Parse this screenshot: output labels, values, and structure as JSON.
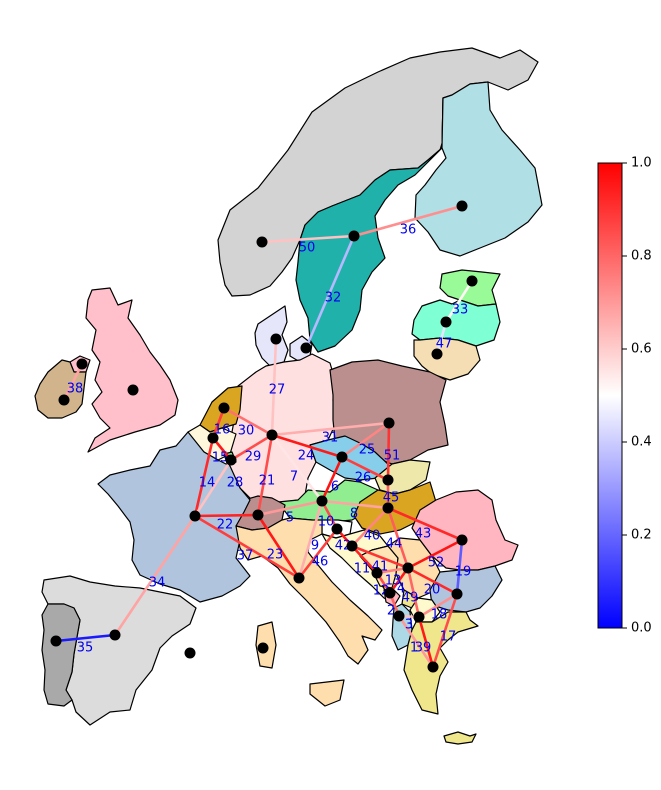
{
  "colorbar": {
    "ticks": [
      "0.0",
      "0.2",
      "0.4",
      "0.6",
      "0.8",
      "1.0"
    ],
    "colors": {
      "low": "#0000ff",
      "mid": "#ffffff",
      "high": "#ff0000"
    }
  },
  "nodes": [
    {
      "id": "n-norway"
    },
    {
      "id": "n-sweden"
    },
    {
      "id": "n-finland"
    },
    {
      "id": "n-latvia"
    },
    {
      "id": "n-lithuania"
    },
    {
      "id": "n-estonia"
    },
    {
      "id": "n-denmark"
    },
    {
      "id": "n-zealand"
    },
    {
      "id": "n-ireland-n"
    },
    {
      "id": "n-ireland"
    },
    {
      "id": "n-uk"
    },
    {
      "id": "n-netherlands"
    },
    {
      "id": "n-belgium"
    },
    {
      "id": "n-luxembourg"
    },
    {
      "id": "n-germany"
    },
    {
      "id": "n-poland"
    },
    {
      "id": "n-czech"
    },
    {
      "id": "n-slovakia"
    },
    {
      "id": "n-austria"
    },
    {
      "id": "n-hungary"
    },
    {
      "id": "n-france"
    },
    {
      "id": "n-switzerland"
    },
    {
      "id": "n-italy"
    },
    {
      "id": "n-slovenia"
    },
    {
      "id": "n-croatia"
    },
    {
      "id": "n-bosnia"
    },
    {
      "id": "n-serbia"
    },
    {
      "id": "n-romania"
    },
    {
      "id": "n-bulgaria"
    },
    {
      "id": "n-montenegro"
    },
    {
      "id": "n-albania"
    },
    {
      "id": "n-macedonia"
    },
    {
      "id": "n-greece"
    },
    {
      "id": "n-spain"
    },
    {
      "id": "n-portugal"
    },
    {
      "id": "n-corsica"
    },
    {
      "id": "n-sardinia"
    }
  ],
  "edges": [
    {
      "label": "50",
      "value": 0.62
    },
    {
      "label": "36",
      "value": 0.72
    },
    {
      "label": "32",
      "value": 0.36
    },
    {
      "label": "33",
      "value": 0.52
    },
    {
      "label": "47",
      "value": 0.45
    },
    {
      "label": "38",
      "value": 0.68
    },
    {
      "label": "27",
      "value": 0.62
    },
    {
      "label": "16",
      "value": 0.88
    },
    {
      "label": "30",
      "value": 0.78
    },
    {
      "label": "15",
      "value": 0.95
    },
    {
      "label": "29",
      "value": 0.85
    },
    {
      "label": "14",
      "value": 0.92
    },
    {
      "label": "31",
      "value": 0.66
    },
    {
      "label": "24",
      "value": 0.95
    },
    {
      "label": "25",
      "value": 0.74
    },
    {
      "label": "51",
      "value": 0.9
    },
    {
      "label": "26",
      "value": 0.88
    },
    {
      "label": "7",
      "value": 0.55
    },
    {
      "label": "28",
      "value": 0.62
    },
    {
      "label": "21",
      "value": 0.85
    },
    {
      "label": "6",
      "value": 0.96
    },
    {
      "label": "45",
      "value": 0.82
    },
    {
      "label": "22",
      "value": 0.93
    },
    {
      "label": "5",
      "value": 0.7
    },
    {
      "label": "10",
      "value": 0.85
    },
    {
      "label": "8",
      "value": 0.68
    },
    {
      "label": "37",
      "value": 0.88
    },
    {
      "label": "23",
      "value": 0.95
    },
    {
      "label": "9",
      "value": 0.66
    },
    {
      "label": "46",
      "value": 0.88
    },
    {
      "label": "42",
      "value": 0.95
    },
    {
      "label": "40",
      "value": 0.74
    },
    {
      "label": "43",
      "value": 0.92
    },
    {
      "label": "44",
      "value": 0.82
    },
    {
      "label": "11",
      "value": 0.93
    },
    {
      "label": "41",
      "value": 0.9
    },
    {
      "label": "52",
      "value": 0.96
    },
    {
      "label": "19",
      "value": 0.18
    },
    {
      "label": "13",
      "value": 0.75
    },
    {
      "label": "12",
      "value": 0.85
    },
    {
      "label": "4",
      "value": 0.95
    },
    {
      "label": "20",
      "value": 0.92
    },
    {
      "label": "49",
      "value": 0.8
    },
    {
      "label": "2",
      "value": 0.8
    },
    {
      "label": "3",
      "value": 0.62
    },
    {
      "label": "18",
      "value": 0.72
    },
    {
      "label": "17",
      "value": 0.85
    },
    {
      "label": "1",
      "value": 0.7
    },
    {
      "label": "39",
      "value": 0.95
    },
    {
      "label": "34",
      "value": 0.68
    },
    {
      "label": "35",
      "value": 0.05
    }
  ]
}
